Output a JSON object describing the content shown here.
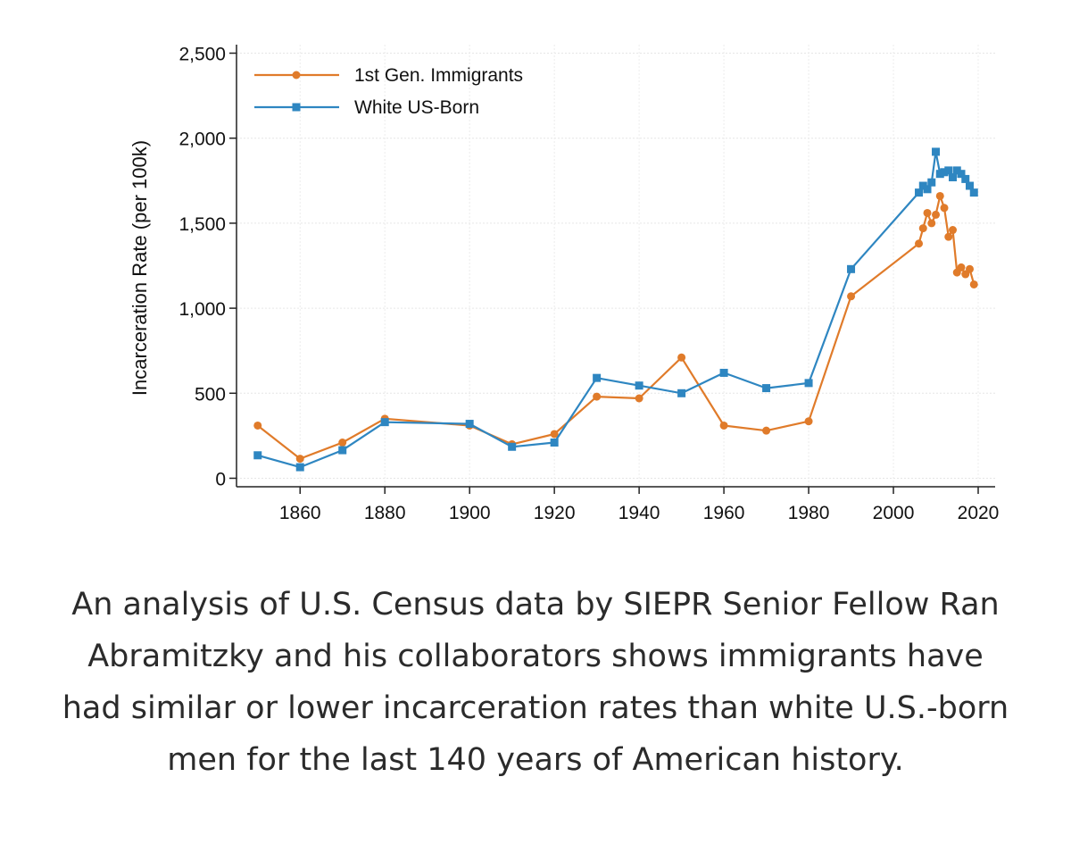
{
  "chart_data": {
    "type": "line",
    "title": "",
    "xlabel": "",
    "ylabel": "Incarceration Rate (per 100k)",
    "xlim": [
      1845,
      2024
    ],
    "ylim": [
      -50,
      2550
    ],
    "xticks": [
      1860,
      1880,
      1900,
      1920,
      1940,
      1960,
      1980,
      2000,
      2020
    ],
    "yticks": [
      0,
      500,
      1000,
      1500,
      2000,
      2500
    ],
    "ytick_labels": [
      "0",
      "500",
      "1,000",
      "1,500",
      "2,000",
      "2,500"
    ],
    "grid": true,
    "legend_position": "top-left",
    "series": [
      {
        "name": "1st Gen. Immigrants",
        "color": "#e07b2a",
        "marker": "circle",
        "x": [
          1850,
          1860,
          1870,
          1880,
          1900,
          1910,
          1920,
          1930,
          1940,
          1950,
          1960,
          1970,
          1980,
          1990,
          2006,
          2007,
          2008,
          2009,
          2010,
          2011,
          2012,
          2013,
          2014,
          2015,
          2016,
          2017,
          2018,
          2019
        ],
        "values": [
          310,
          115,
          210,
          350,
          310,
          200,
          260,
          480,
          470,
          710,
          310,
          280,
          335,
          1070,
          1380,
          1470,
          1560,
          1500,
          1550,
          1660,
          1590,
          1420,
          1460,
          1210,
          1240,
          1200,
          1230,
          1140
        ]
      },
      {
        "name": "White US-Born",
        "color": "#2e86c1",
        "marker": "square",
        "x": [
          1850,
          1860,
          1870,
          1880,
          1900,
          1910,
          1920,
          1930,
          1940,
          1950,
          1960,
          1970,
          1980,
          1990,
          2006,
          2007,
          2008,
          2009,
          2010,
          2011,
          2012,
          2013,
          2014,
          2015,
          2016,
          2017,
          2018,
          2019
        ],
        "values": [
          135,
          65,
          165,
          330,
          320,
          185,
          210,
          590,
          545,
          500,
          620,
          530,
          560,
          1230,
          1680,
          1720,
          1700,
          1740,
          1920,
          1790,
          1800,
          1810,
          1770,
          1810,
          1790,
          1760,
          1720,
          1680
        ]
      }
    ]
  },
  "caption": "An analysis of U.S. Census data by SIEPR Senior Fellow Ran Abramitzky and his collaborators shows immigrants have had similar or lower incarceration rates than white U.S.-born men for the last 140 years of American history."
}
